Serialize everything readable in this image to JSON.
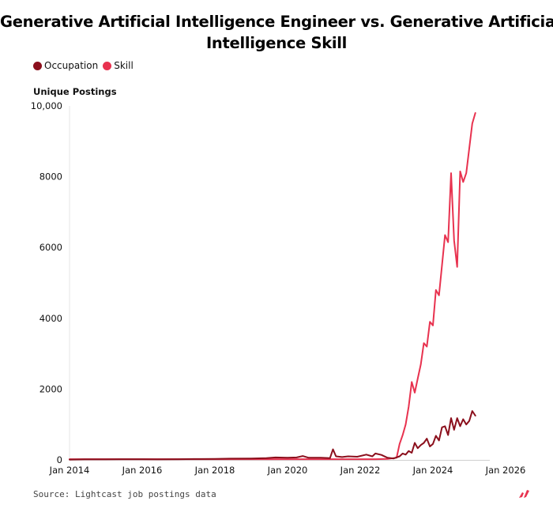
{
  "chart_data": {
    "type": "line",
    "title_lines": [
      "Generative Artificial Intelligence Engineer vs. Generative Artificial",
      "Intelligence Skill"
    ],
    "ylabel": "Unique Postings",
    "xlabel": "",
    "ylim": [
      0,
      10000
    ],
    "yticks": [
      0,
      2000,
      4000,
      6000,
      8000,
      10000
    ],
    "ytick_labels": [
      "0",
      "2000",
      "4000",
      "6000",
      "8000",
      "10,000"
    ],
    "xlim": [
      "2014-01",
      "2026-01"
    ],
    "xticks": [
      "2014-01",
      "2016-01",
      "2018-01",
      "2020-01",
      "2022-01",
      "2024-01",
      "2026-01"
    ],
    "xtick_labels": [
      "Jan 2014",
      "Jan 2016",
      "Jan 2018",
      "Jan 2020",
      "Jan 2022",
      "Jan 2024",
      "Jan 2026"
    ],
    "grid": false,
    "legend_position": "top-left",
    "series": [
      {
        "name": "Occupation",
        "color": "#8b0f1c",
        "points": [
          [
            "2014-01",
            10
          ],
          [
            "2014-06",
            15
          ],
          [
            "2015-01",
            15
          ],
          [
            "2015-06",
            20
          ],
          [
            "2016-01",
            20
          ],
          [
            "2016-06",
            15
          ],
          [
            "2017-01",
            20
          ],
          [
            "2017-06",
            25
          ],
          [
            "2018-01",
            30
          ],
          [
            "2018-06",
            35
          ],
          [
            "2019-01",
            40
          ],
          [
            "2019-06",
            50
          ],
          [
            "2019-09",
            70
          ],
          [
            "2020-01",
            60
          ],
          [
            "2020-04",
            70
          ],
          [
            "2020-06",
            110
          ],
          [
            "2020-08",
            60
          ],
          [
            "2020-12",
            60
          ],
          [
            "2021-03",
            50
          ],
          [
            "2021-04",
            300
          ],
          [
            "2021-05",
            100
          ],
          [
            "2021-07",
            80
          ],
          [
            "2021-09",
            100
          ],
          [
            "2021-12",
            90
          ],
          [
            "2022-03",
            150
          ],
          [
            "2022-05",
            100
          ],
          [
            "2022-06",
            180
          ],
          [
            "2022-08",
            140
          ],
          [
            "2022-10",
            60
          ],
          [
            "2022-12",
            40
          ],
          [
            "2023-02",
            100
          ],
          [
            "2023-03",
            180
          ],
          [
            "2023-04",
            150
          ],
          [
            "2023-05",
            250
          ],
          [
            "2023-06",
            200
          ],
          [
            "2023-07",
            480
          ],
          [
            "2023-08",
            330
          ],
          [
            "2023-09",
            420
          ],
          [
            "2023-10",
            480
          ],
          [
            "2023-11",
            600
          ],
          [
            "2023-12",
            380
          ],
          [
            "2024-01",
            450
          ],
          [
            "2024-02",
            680
          ],
          [
            "2024-03",
            550
          ],
          [
            "2024-04",
            920
          ],
          [
            "2024-05",
            950
          ],
          [
            "2024-06",
            700
          ],
          [
            "2024-07",
            1180
          ],
          [
            "2024-08",
            850
          ],
          [
            "2024-09",
            1180
          ],
          [
            "2024-10",
            950
          ],
          [
            "2024-11",
            1150
          ],
          [
            "2024-12",
            1000
          ],
          [
            "2025-01",
            1100
          ],
          [
            "2025-02",
            1380
          ],
          [
            "2025-03",
            1250
          ]
        ]
      },
      {
        "name": "Skill",
        "color": "#e8324f",
        "points": [
          [
            "2014-01",
            20
          ],
          [
            "2015-01",
            20
          ],
          [
            "2016-01",
            20
          ],
          [
            "2017-01",
            20
          ],
          [
            "2018-01",
            20
          ],
          [
            "2019-01",
            20
          ],
          [
            "2020-01",
            20
          ],
          [
            "2021-01",
            20
          ],
          [
            "2022-01",
            20
          ],
          [
            "2022-06",
            20
          ],
          [
            "2022-10",
            30
          ],
          [
            "2023-01",
            60
          ],
          [
            "2023-02",
            450
          ],
          [
            "2023-03",
            700
          ],
          [
            "2023-04",
            1000
          ],
          [
            "2023-05",
            1500
          ],
          [
            "2023-06",
            2200
          ],
          [
            "2023-07",
            1900
          ],
          [
            "2023-08",
            2300
          ],
          [
            "2023-09",
            2700
          ],
          [
            "2023-10",
            3300
          ],
          [
            "2023-11",
            3200
          ],
          [
            "2023-12",
            3900
          ],
          [
            "2024-01",
            3800
          ],
          [
            "2024-02",
            4800
          ],
          [
            "2024-03",
            4650
          ],
          [
            "2024-04",
            5500
          ],
          [
            "2024-05",
            6350
          ],
          [
            "2024-06",
            6150
          ],
          [
            "2024-07",
            8100
          ],
          [
            "2024-08",
            6200
          ],
          [
            "2024-09",
            5450
          ],
          [
            "2024-10",
            8150
          ],
          [
            "2024-11",
            7850
          ],
          [
            "2024-12",
            8100
          ],
          [
            "2025-01",
            8800
          ],
          [
            "2025-02",
            9500
          ],
          [
            "2025-03",
            9800
          ]
        ]
      }
    ]
  },
  "source": "Source: Lightcast job postings data",
  "logo_icon": "lightcast-logo-icon"
}
